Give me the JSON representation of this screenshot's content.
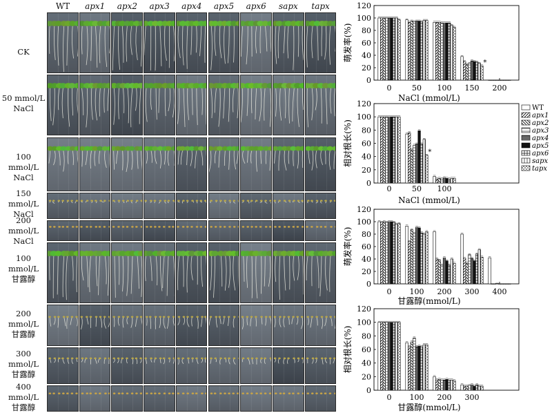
{
  "genotypes": [
    "WT",
    "apx1",
    "apx2",
    "apx3",
    "apx4",
    "apx5",
    "apx6",
    "sapx",
    "tapx"
  ],
  "row_labels": [
    [
      "CK"
    ],
    [
      "50 mmol/L",
      "NaCl"
    ],
    [
      "100 mmol/L",
      "NaCl"
    ],
    [
      "150 mmol/L",
      "NaCl"
    ],
    [
      "200 mmol/L",
      "NaCl"
    ],
    [
      "100 mmol/L",
      "甘露醇"
    ],
    [
      "200 mmol/L",
      "甘露醇"
    ],
    [
      "300 mmol/L",
      "甘露醇"
    ],
    [
      "400 mmol/L",
      "甘露醇"
    ]
  ],
  "legend": [
    "WT",
    "apx1",
    "apx2",
    "apx3",
    "apx4",
    "apx5",
    "apx6",
    "sapx",
    "tapx"
  ],
  "chart_data": [
    {
      "type": "bar",
      "ylabel": "萌发率(%)",
      "xlabel": "NaCl (mmol/L)",
      "categories": [
        "0",
        "50",
        "100",
        "150",
        "200"
      ],
      "ylim": [
        0,
        120
      ],
      "yticks": [
        0,
        20,
        40,
        60,
        80,
        100,
        120
      ],
      "series": [
        {
          "name": "WT",
          "values": [
            100,
            97,
            93,
            38,
            0
          ]
        },
        {
          "name": "apx1",
          "values": [
            100,
            93,
            93,
            30,
            0
          ]
        },
        {
          "name": "apx2",
          "values": [
            100,
            95,
            93,
            25,
            0
          ]
        },
        {
          "name": "apx3",
          "values": [
            100,
            94,
            92,
            27,
            0
          ]
        },
        {
          "name": "apx4",
          "values": [
            100,
            95,
            92,
            31,
            0
          ]
        },
        {
          "name": "apx5",
          "values": [
            100,
            95,
            92,
            30,
            0
          ]
        },
        {
          "name": "apx6",
          "values": [
            100,
            94,
            92,
            29,
            0
          ]
        },
        {
          "name": "sapx",
          "values": [
            100,
            96,
            88,
            27,
            0
          ]
        },
        {
          "name": "tapx",
          "values": [
            97,
            96,
            85,
            23,
            0
          ]
        }
      ],
      "annotations": [
        {
          "category": "150",
          "series": "tapx",
          "text": "*"
        }
      ]
    },
    {
      "type": "bar",
      "ylabel": "相对根长(%)",
      "xlabel": "NaCl (mmol/L)",
      "categories": [
        "0",
        "50",
        "100"
      ],
      "ylim": [
        0,
        120
      ],
      "yticks": [
        0,
        20,
        40,
        60,
        80,
        100,
        120
      ],
      "series": [
        {
          "name": "WT",
          "values": [
            100,
            74,
            10
          ]
        },
        {
          "name": "apx1",
          "values": [
            100,
            76,
            6
          ]
        },
        {
          "name": "apx2",
          "values": [
            100,
            50,
            7
          ]
        },
        {
          "name": "apx3",
          "values": [
            100,
            57,
            6
          ]
        },
        {
          "name": "apx4",
          "values": [
            100,
            59,
            8
          ]
        },
        {
          "name": "apx5",
          "values": [
            100,
            79,
            7
          ]
        },
        {
          "name": "apx6",
          "values": [
            100,
            59,
            6
          ]
        },
        {
          "name": "sapx",
          "values": [
            100,
            66,
            7
          ]
        },
        {
          "name": "tapx",
          "values": [
            100,
            42,
            7
          ]
        }
      ],
      "annotations": [
        {
          "category": "50",
          "series": "tapx",
          "text": "*"
        }
      ]
    },
    {
      "type": "bar",
      "ylabel": "萌发率(%)",
      "xlabel": "甘露醇(mmol/L)",
      "categories": [
        "0",
        "100",
        "200",
        "300",
        "400"
      ],
      "ylim": [
        0,
        120
      ],
      "yticks": [
        0,
        20,
        40,
        60,
        80,
        100,
        120
      ],
      "series": [
        {
          "name": "WT",
          "values": [
            100,
            93,
            84,
            80,
            42
          ]
        },
        {
          "name": "apx1",
          "values": [
            99,
            68,
            40,
            41,
            0
          ]
        },
        {
          "name": "apx2",
          "values": [
            100,
            87,
            38,
            33,
            0
          ]
        },
        {
          "name": "apx3",
          "values": [
            99,
            81,
            30,
            47,
            1
          ]
        },
        {
          "name": "apx4",
          "values": [
            100,
            91,
            42,
            41,
            0
          ]
        },
        {
          "name": "apx5",
          "values": [
            100,
            90,
            37,
            37,
            0
          ]
        },
        {
          "name": "apx6",
          "values": [
            99,
            82,
            30,
            48,
            0
          ]
        },
        {
          "name": "sapx",
          "values": [
            96,
            80,
            40,
            55,
            0
          ]
        },
        {
          "name": "tapx",
          "values": [
            97,
            84,
            33,
            43,
            0
          ]
        }
      ],
      "annotations": []
    },
    {
      "type": "bar",
      "ylabel": "相对根长(%)",
      "xlabel": "甘露醇(mmol/L)",
      "categories": [
        "0",
        "100",
        "200",
        "300"
      ],
      "ylim": [
        0,
        120
      ],
      "yticks": [
        0,
        20,
        40,
        60,
        80,
        100,
        120
      ],
      "series": [
        {
          "name": "WT",
          "values": [
            100,
            70,
            20,
            8
          ]
        },
        {
          "name": "apx1",
          "values": [
            100,
            64,
            15,
            6
          ]
        },
        {
          "name": "apx2",
          "values": [
            100,
            71,
            16,
            6
          ]
        },
        {
          "name": "apx3",
          "values": [
            100,
            77,
            15,
            7
          ]
        },
        {
          "name": "apx4",
          "values": [
            100,
            64,
            15,
            8
          ]
        },
        {
          "name": "apx5",
          "values": [
            100,
            65,
            16,
            6
          ]
        },
        {
          "name": "apx6",
          "values": [
            100,
            64,
            15,
            8
          ]
        },
        {
          "name": "sapx",
          "values": [
            100,
            67,
            15,
            6
          ]
        },
        {
          "name": "tapx",
          "values": [
            100,
            67,
            14,
            6
          ]
        }
      ],
      "annotations": []
    }
  ]
}
